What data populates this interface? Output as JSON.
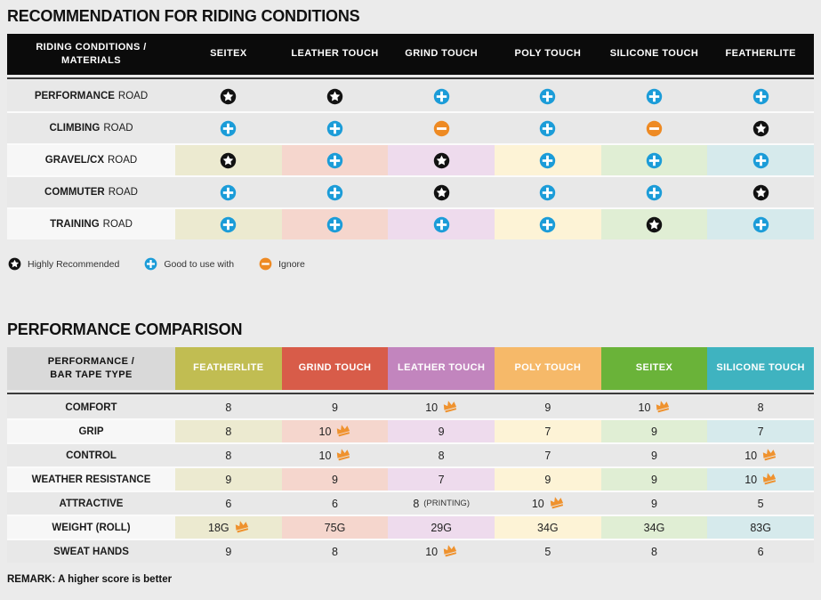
{
  "colors": {
    "page_bg": "#ebebeb",
    "row_bg": "#e8e8e8",
    "row_first_light": "#f7f7f7",
    "header_black": "#0b0b0b",
    "header_gray": "#d9d9d9",
    "icon_blue": "#1b9cd8",
    "icon_orange": "#ee8a23",
    "icon_black": "#121212",
    "crown_orange": "#ef922e",
    "tints": [
      "#ecead0",
      "#f5d6cd",
      "#eedbed",
      "#fdf3d6",
      "#e0eed4",
      "#d6eaec"
    ]
  },
  "section1": {
    "title": "RECOMMENDATION FOR RIDING CONDITIONS",
    "table": {
      "corner_line1": "RIDING CONDITIONS /",
      "corner_line2": "MATERIALS",
      "columns": [
        "SEITEX",
        "LEATHER TOUCH",
        "GRIND TOUCH",
        "POLY TOUCH",
        "SILICONE TOUCH",
        "FEATHERLITE"
      ],
      "rows": [
        {
          "label_bold": "PERFORMANCE",
          "label_rest": "ROAD",
          "tinted": false,
          "icons": [
            "star",
            "star",
            "plus",
            "plus",
            "plus",
            "plus"
          ]
        },
        {
          "label_bold": "CLIMBING",
          "label_rest": "ROAD",
          "tinted": false,
          "icons": [
            "plus",
            "plus",
            "minus",
            "plus",
            "minus",
            "star"
          ]
        },
        {
          "label_bold": "GRAVEL/CX",
          "label_rest": "ROAD",
          "tinted": true,
          "icons": [
            "star",
            "plus",
            "star",
            "plus",
            "plus",
            "plus"
          ]
        },
        {
          "label_bold": "COMMUTER",
          "label_rest": "ROAD",
          "tinted": false,
          "icons": [
            "plus",
            "plus",
            "star",
            "plus",
            "plus",
            "star"
          ]
        },
        {
          "label_bold": "TRAINING",
          "label_rest": "ROAD",
          "tinted": true,
          "icons": [
            "plus",
            "plus",
            "plus",
            "plus",
            "star",
            "plus"
          ]
        }
      ]
    },
    "legend": [
      {
        "icon": "star",
        "label": "Highly Recommended"
      },
      {
        "icon": "plus",
        "label": "Good to use with"
      },
      {
        "icon": "minus",
        "label": "Ignore"
      }
    ]
  },
  "section2": {
    "title": "PERFORMANCE COMPARISON",
    "table": {
      "corner_line1": "PERFORMANCE /",
      "corner_line2": "BAR TAPE TYPE",
      "columns": [
        {
          "label": "FEATHERLITE",
          "color": "#c1bd52"
        },
        {
          "label": "GRIND TOUCH",
          "color": "#d85c49"
        },
        {
          "label": "LEATHER TOUCH",
          "color": "#c285be"
        },
        {
          "label": "POLY TOUCH",
          "color": "#f6b969"
        },
        {
          "label": "SEITEX",
          "color": "#6ab339"
        },
        {
          "label": "SILICONE TOUCH",
          "color": "#3fb3c0"
        }
      ],
      "rows": [
        {
          "label": "COMFORT",
          "tinted": false,
          "cells": [
            {
              "value": "8"
            },
            {
              "value": "9"
            },
            {
              "value": "10",
              "crown": true
            },
            {
              "value": "9"
            },
            {
              "value": "10",
              "crown": true
            },
            {
              "value": "8"
            }
          ]
        },
        {
          "label": "GRIP",
          "tinted": true,
          "cells": [
            {
              "value": "8"
            },
            {
              "value": "10",
              "crown": true
            },
            {
              "value": "9"
            },
            {
              "value": "7"
            },
            {
              "value": "9"
            },
            {
              "value": "7"
            }
          ]
        },
        {
          "label": "CONTROL",
          "tinted": false,
          "cells": [
            {
              "value": "8"
            },
            {
              "value": "10",
              "crown": true
            },
            {
              "value": "8"
            },
            {
              "value": "7"
            },
            {
              "value": "9"
            },
            {
              "value": "10",
              "crown": true
            }
          ]
        },
        {
          "label": "WEATHER RESISTANCE",
          "tinted": true,
          "cells": [
            {
              "value": "9"
            },
            {
              "value": "9"
            },
            {
              "value": "7"
            },
            {
              "value": "9"
            },
            {
              "value": "9"
            },
            {
              "value": "10",
              "crown": true
            }
          ]
        },
        {
          "label": "ATTRACTIVE",
          "tinted": false,
          "cells": [
            {
              "value": "6"
            },
            {
              "value": "6"
            },
            {
              "value": "8",
              "suffix": "(PRINTING)"
            },
            {
              "value": "10",
              "crown": true
            },
            {
              "value": "9"
            },
            {
              "value": "5"
            }
          ]
        },
        {
          "label": "WEIGHT (ROLL)",
          "tinted": true,
          "cells": [
            {
              "value": "18G",
              "crown": true
            },
            {
              "value": "75G"
            },
            {
              "value": "29G"
            },
            {
              "value": "34G"
            },
            {
              "value": "34G"
            },
            {
              "value": "83G"
            }
          ]
        },
        {
          "label": "SWEAT HANDS",
          "tinted": false,
          "cells": [
            {
              "value": "9"
            },
            {
              "value": "8"
            },
            {
              "value": "10",
              "crown": true
            },
            {
              "value": "5"
            },
            {
              "value": "8"
            },
            {
              "value": "6"
            }
          ]
        }
      ]
    },
    "remark": "REMARK: A higher score is better"
  }
}
